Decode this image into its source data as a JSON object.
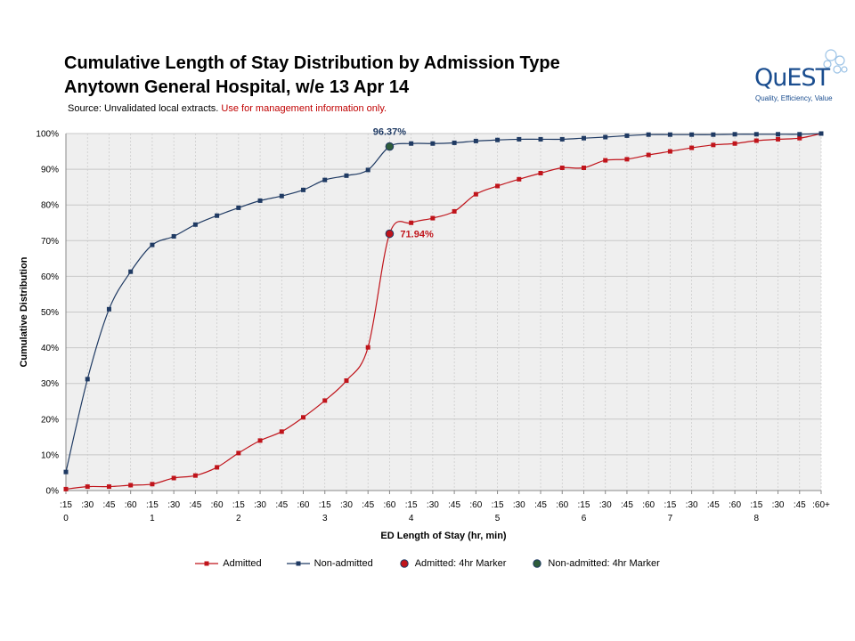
{
  "header": {
    "title_line1": "Cumulative Length of Stay Distribution by Admission Type",
    "title_line2": "Anytown General Hospital, w/e 13 Apr 14",
    "source_prefix": "Source: Unvalidated local extracts. ",
    "source_warning": "Use for management  information only."
  },
  "logo": {
    "name": "QuEST",
    "tagline": "Quality, Efficiency, Value"
  },
  "colors": {
    "admitted": "#c0141b",
    "non_admitted": "#1f3a63",
    "marker_admitted_fill": "#c0141b",
    "marker_non_admitted_fill": "#2e5c3a",
    "plot_bg": "#efefef",
    "grid": "#c8c8c8"
  },
  "chart_data": {
    "type": "line",
    "title": "Cumulative Length of Stay Distribution by Admission Type",
    "subtitle": "Anytown General Hospital, w/e 13 Apr 14",
    "xlabel": "ED Length of Stay (hr, min)",
    "ylabel": "Cumulative Distribution",
    "ylim": [
      0,
      100
    ],
    "y_ticks": [
      "0%",
      "10%",
      "20%",
      "30%",
      "40%",
      "50%",
      "60%",
      "70%",
      "80%",
      "90%",
      "100%"
    ],
    "categories": [
      ":15",
      ":30",
      ":45",
      ":60",
      ":15",
      ":30",
      ":45",
      ":60",
      ":15",
      ":30",
      ":45",
      ":60",
      ":15",
      ":30",
      ":45",
      ":60",
      ":15",
      ":30",
      ":45",
      ":60",
      ":15",
      ":30",
      ":45",
      ":60",
      ":15",
      ":30",
      ":45",
      ":60",
      ":15",
      ":30",
      ":45",
      ":60",
      ":15",
      ":30",
      ":45",
      ":60+"
    ],
    "hour_labels": [
      "0",
      "1",
      "2",
      "3",
      "4",
      "5",
      "6",
      "7",
      "8"
    ],
    "series": [
      {
        "name": "Admitted",
        "values": [
          0.4,
          1.1,
          1.1,
          1.5,
          1.8,
          3.5,
          4.2,
          6.5,
          10.5,
          14,
          16.5,
          20.5,
          25.2,
          30.8,
          40.1,
          71.94,
          75,
          76.3,
          78.2,
          83,
          85.3,
          87.2,
          88.9,
          90.4,
          90.4,
          92.5,
          92.8,
          94,
          95,
          96,
          96.8,
          97.2,
          98,
          98.4,
          98.7,
          100
        ]
      },
      {
        "name": "Non-admitted",
        "values": [
          5.2,
          31.2,
          50.8,
          61.3,
          68.8,
          71.2,
          74.5,
          77,
          79.2,
          81.2,
          82.5,
          84.2,
          87,
          88.2,
          89.8,
          96.37,
          97.2,
          97.2,
          97.4,
          97.9,
          98.2,
          98.4,
          98.4,
          98.4,
          98.7,
          99,
          99.4,
          99.7,
          99.7,
          99.7,
          99.7,
          99.8,
          99.8,
          99.8,
          99.8,
          100
        ]
      }
    ],
    "markers": [
      {
        "name": "Admitted: 4hr Marker",
        "category_index": 15,
        "value": 71.94,
        "label": "71.94%"
      },
      {
        "name": "Non-admitted: 4hr Marker",
        "category_index": 15,
        "value": 96.37,
        "label": "96.37%"
      }
    ],
    "legend_placement": "bottom",
    "grid": true
  }
}
